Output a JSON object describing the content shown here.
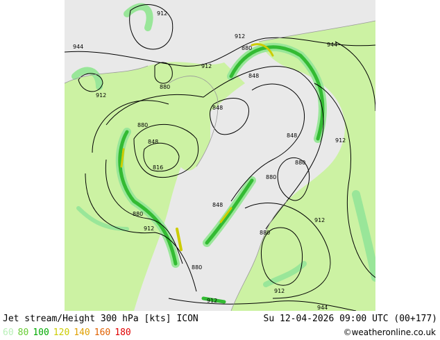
{
  "title": "Jet stream/Height 300 hPa [kts] ICON",
  "valid_time": "Su 12-04-2026 09:00 UTC (00+177)",
  "credit": "©weatheronline.co.uk",
  "legend": [
    {
      "label": "60",
      "color": "#b8f0b8"
    },
    {
      "label": "80",
      "color": "#66cc33"
    },
    {
      "label": "100",
      "color": "#00aa00"
    },
    {
      "label": "120",
      "color": "#cccc00"
    },
    {
      "label": "140",
      "color": "#e0a000"
    },
    {
      "label": "160",
      "color": "#e06000"
    },
    {
      "label": "180",
      "color": "#e00000"
    }
  ],
  "contour_labels": [
    "912",
    "944",
    "912",
    "880",
    "912",
    "880",
    "944",
    "912",
    "848",
    "848",
    "880",
    "848",
    "848",
    "816",
    "880",
    "912",
    "880",
    "848",
    "880",
    "912",
    "880",
    "880",
    "912",
    "912",
    "944"
  ],
  "colors": {
    "land": "#ccf2a3",
    "sea": "#e9e9e9",
    "jet_light": "#99e699",
    "jet_mid": "#33bb33",
    "jet_fast": "#cccc00",
    "contour": "#000000",
    "coast": "#999999"
  }
}
